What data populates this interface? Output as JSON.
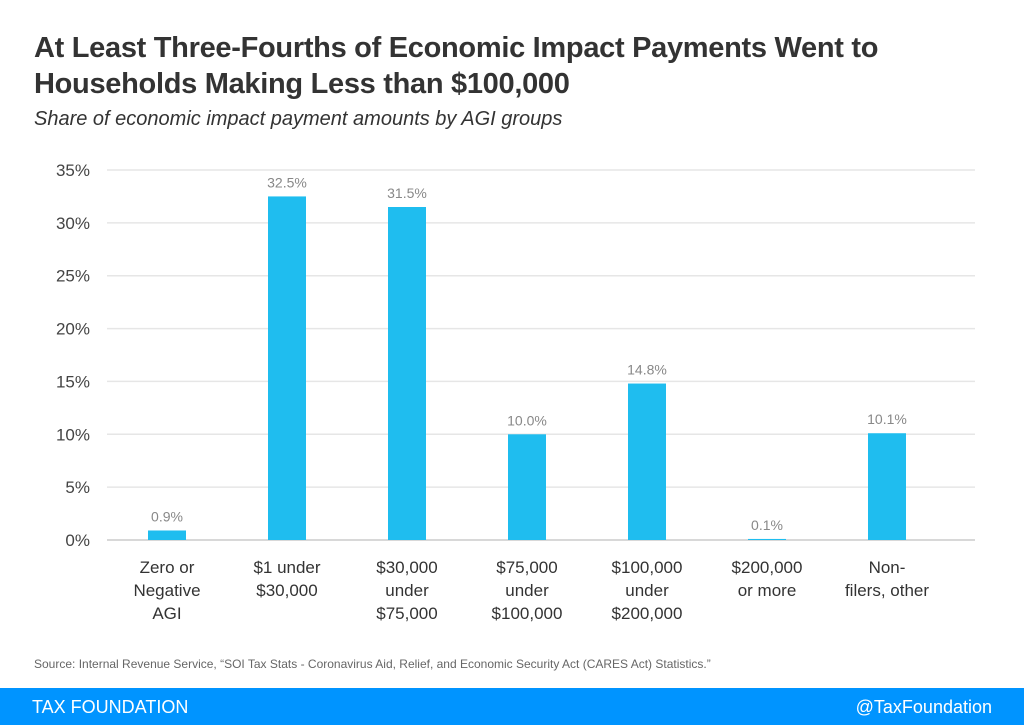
{
  "chart_data": {
    "type": "bar",
    "title": "At Least Three-Fourths of Economic Impact Payments Went to Households Making Less than $100,000",
    "subtitle": "Share of economic impact payment amounts by AGI groups",
    "categories": [
      [
        "Zero or",
        "Negative",
        "AGI"
      ],
      [
        "$1 under",
        "$30,000"
      ],
      [
        "$30,000",
        "under",
        "$75,000"
      ],
      [
        "$75,000",
        "under",
        "$100,000"
      ],
      [
        "$100,000",
        "under",
        "$200,000"
      ],
      [
        "$200,000",
        "or more"
      ],
      [
        "Non-",
        "filers, other"
      ]
    ],
    "values": [
      0.9,
      32.5,
      31.5,
      10.0,
      14.8,
      0.1,
      10.1
    ],
    "data_labels": [
      "0.9%",
      "32.5%",
      "31.5%",
      "10.0%",
      "14.8%",
      "0.1%",
      "10.1%"
    ],
    "yticks": [
      "0%",
      "5%",
      "10%",
      "15%",
      "20%",
      "25%",
      "30%",
      "35%"
    ],
    "ylim": [
      0,
      35
    ],
    "grid": true,
    "bar_color": "#1fbdef"
  },
  "source": "Source: Internal Revenue Service, “SOI Tax Stats - Coronavirus Aid, Relief, and Economic Security Act (CARES Act) Statistics.”",
  "footer": {
    "left": "TAX FOUNDATION",
    "right": "@TaxFoundation"
  }
}
